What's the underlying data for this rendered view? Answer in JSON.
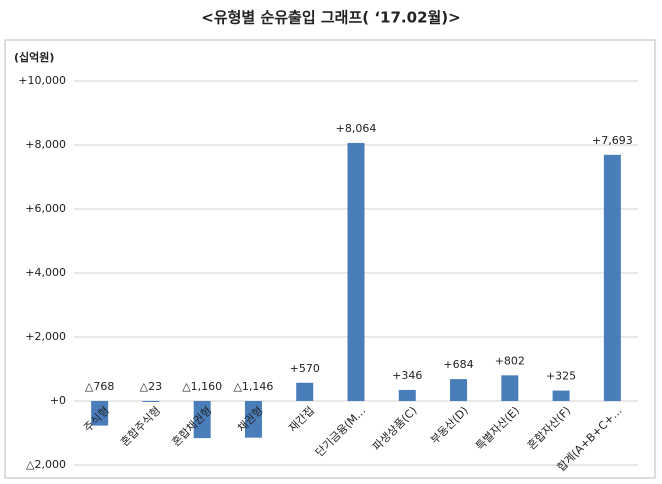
{
  "chart_data": {
    "type": "bar",
    "title": "<유형별 순유출입 그래프( ‘17.02월)>",
    "y_label": "(십억원)",
    "categories": [
      "주식형",
      "혼합주식형",
      "혼합채권형",
      "채권형",
      "재간접",
      "단기금융(M…",
      "파생상품(C)",
      "부동산(D)",
      "특별자산(E)",
      "혼합자산(F)",
      "합계(A+B+C+…"
    ],
    "values": [
      -768,
      -23,
      -1160,
      -1146,
      570,
      8064,
      346,
      684,
      802,
      325,
      7693
    ],
    "value_labels": [
      "△768",
      "△23",
      "△1,160",
      "△1,146",
      "+570",
      "+8,064",
      "+346",
      "+684",
      "+802",
      "+325",
      "+7,693"
    ],
    "color": "#4a7ebb",
    "ylim": [
      -2000,
      10000
    ],
    "yticks": [
      {
        "value": -2000,
        "label": "△2,000"
      },
      {
        "value": 0,
        "label": "+0"
      },
      {
        "value": 2000,
        "label": "+2,000"
      },
      {
        "value": 4000,
        "label": "+4,000"
      },
      {
        "value": 6000,
        "label": "+6,000"
      },
      {
        "value": 8000,
        "label": "+8,000"
      },
      {
        "value": 10000,
        "label": "+10,000"
      }
    ],
    "grid": true
  }
}
